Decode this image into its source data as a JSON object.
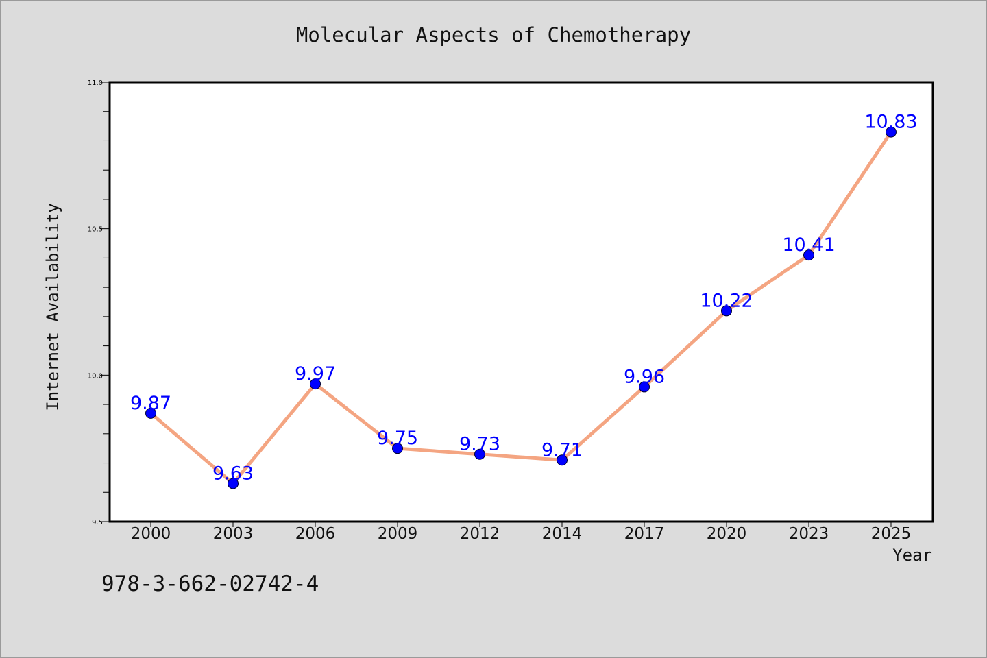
{
  "chart_data": {
    "type": "line",
    "title": "Molecular Aspects of Chemotherapy",
    "xlabel": "Year",
    "ylabel": "Internet Availability",
    "categories": [
      "2000",
      "2003",
      "2006",
      "2009",
      "2012",
      "2014",
      "2017",
      "2020",
      "2023",
      "2025"
    ],
    "values": [
      9.87,
      9.63,
      9.97,
      9.75,
      9.73,
      9.71,
      9.96,
      10.22,
      10.41,
      10.83
    ],
    "data_labels": [
      "9.87",
      "9.63",
      "9.97",
      "9.75",
      "9.73",
      "9.71",
      "9.96",
      "10.22",
      "10.41",
      "10.83"
    ],
    "ylim": [
      9.5,
      11.0
    ],
    "yticks": [
      9.5,
      10.0,
      10.5,
      11.0
    ],
    "ytick_labels": [
      "9.5",
      "10.0",
      "10.5",
      "11.0"
    ],
    "y_minor_step": 0.1,
    "grid": false,
    "legend": "none",
    "colors": {
      "line": "#f4a582",
      "marker": "#0000ff",
      "data_label": "#0000ff",
      "background": "#dcdcdc"
    }
  },
  "footer": {
    "isbn": "978-3-662-02742-4"
  }
}
